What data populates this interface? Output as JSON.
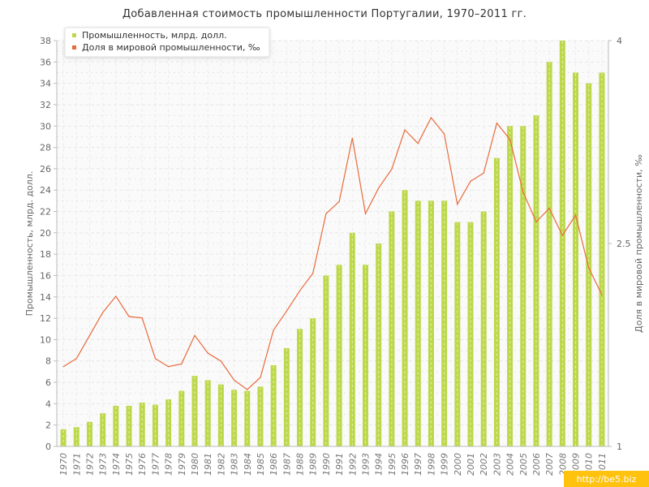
{
  "chart_data": {
    "type": "bar+line",
    "title": "Добавленная стоимость промышленности Португалии, 1970–2011 гг.",
    "ylabel_left": "Промышленность, млрд. долл.",
    "ylabel_right": "Доля в мировой промышленности, ‰",
    "ylim_left": [
      0,
      38
    ],
    "yticks_left": [
      0,
      2,
      4,
      6,
      8,
      10,
      12,
      14,
      16,
      18,
      20,
      22,
      24,
      26,
      28,
      30,
      32,
      34,
      36,
      38
    ],
    "ylim_right": [
      1,
      4
    ],
    "yticks_right": [
      "1",
      "2.5",
      "4"
    ],
    "legend_position": "top-left",
    "grid": true,
    "categories": [
      "1970",
      "1971",
      "1972",
      "1973",
      "1974",
      "1975",
      "1976",
      "1977",
      "1978",
      "1979",
      "1980",
      "1981",
      "1982",
      "1983",
      "1984",
      "1985",
      "1986",
      "1987",
      "1988",
      "1989",
      "1990",
      "1991",
      "1992",
      "1993",
      "1994",
      "1995",
      "1996",
      "1997",
      "1998",
      "1999",
      "2000",
      "2001",
      "2002",
      "2003",
      "2004",
      "2005",
      "2006",
      "2007",
      "2008",
      "2009",
      "2010",
      "2011"
    ],
    "series": [
      {
        "name": "Промышленность, млрд. долл.",
        "kind": "bar",
        "axis": "left",
        "color": "#bcd84a",
        "values": [
          1.6,
          1.8,
          2.3,
          3.1,
          3.8,
          3.8,
          4.1,
          3.9,
          4.4,
          5.2,
          6.6,
          6.2,
          5.8,
          5.3,
          5.2,
          5.6,
          7.6,
          9.2,
          11,
          12,
          16,
          17,
          20,
          17,
          19,
          22,
          24,
          23,
          23,
          23,
          21,
          21,
          22,
          27,
          30,
          30,
          31,
          36,
          38,
          35,
          34,
          35
        ]
      },
      {
        "name": "Доля в мировой промышленности, ‰",
        "kind": "line",
        "axis": "right",
        "color": "#e86a3c",
        "values": [
          1.59,
          1.65,
          1.82,
          1.99,
          2.11,
          1.96,
          1.95,
          1.65,
          1.59,
          1.61,
          1.82,
          1.69,
          1.63,
          1.49,
          1.42,
          1.51,
          1.86,
          2.0,
          2.15,
          2.28,
          2.72,
          2.81,
          3.28,
          2.72,
          2.91,
          3.05,
          3.34,
          3.24,
          3.43,
          3.31,
          2.79,
          2.96,
          3.02,
          3.39,
          3.27,
          2.88,
          2.66,
          2.76,
          2.56,
          2.71,
          2.32,
          2.12
        ]
      }
    ]
  },
  "watermark": "http://be5.biz"
}
